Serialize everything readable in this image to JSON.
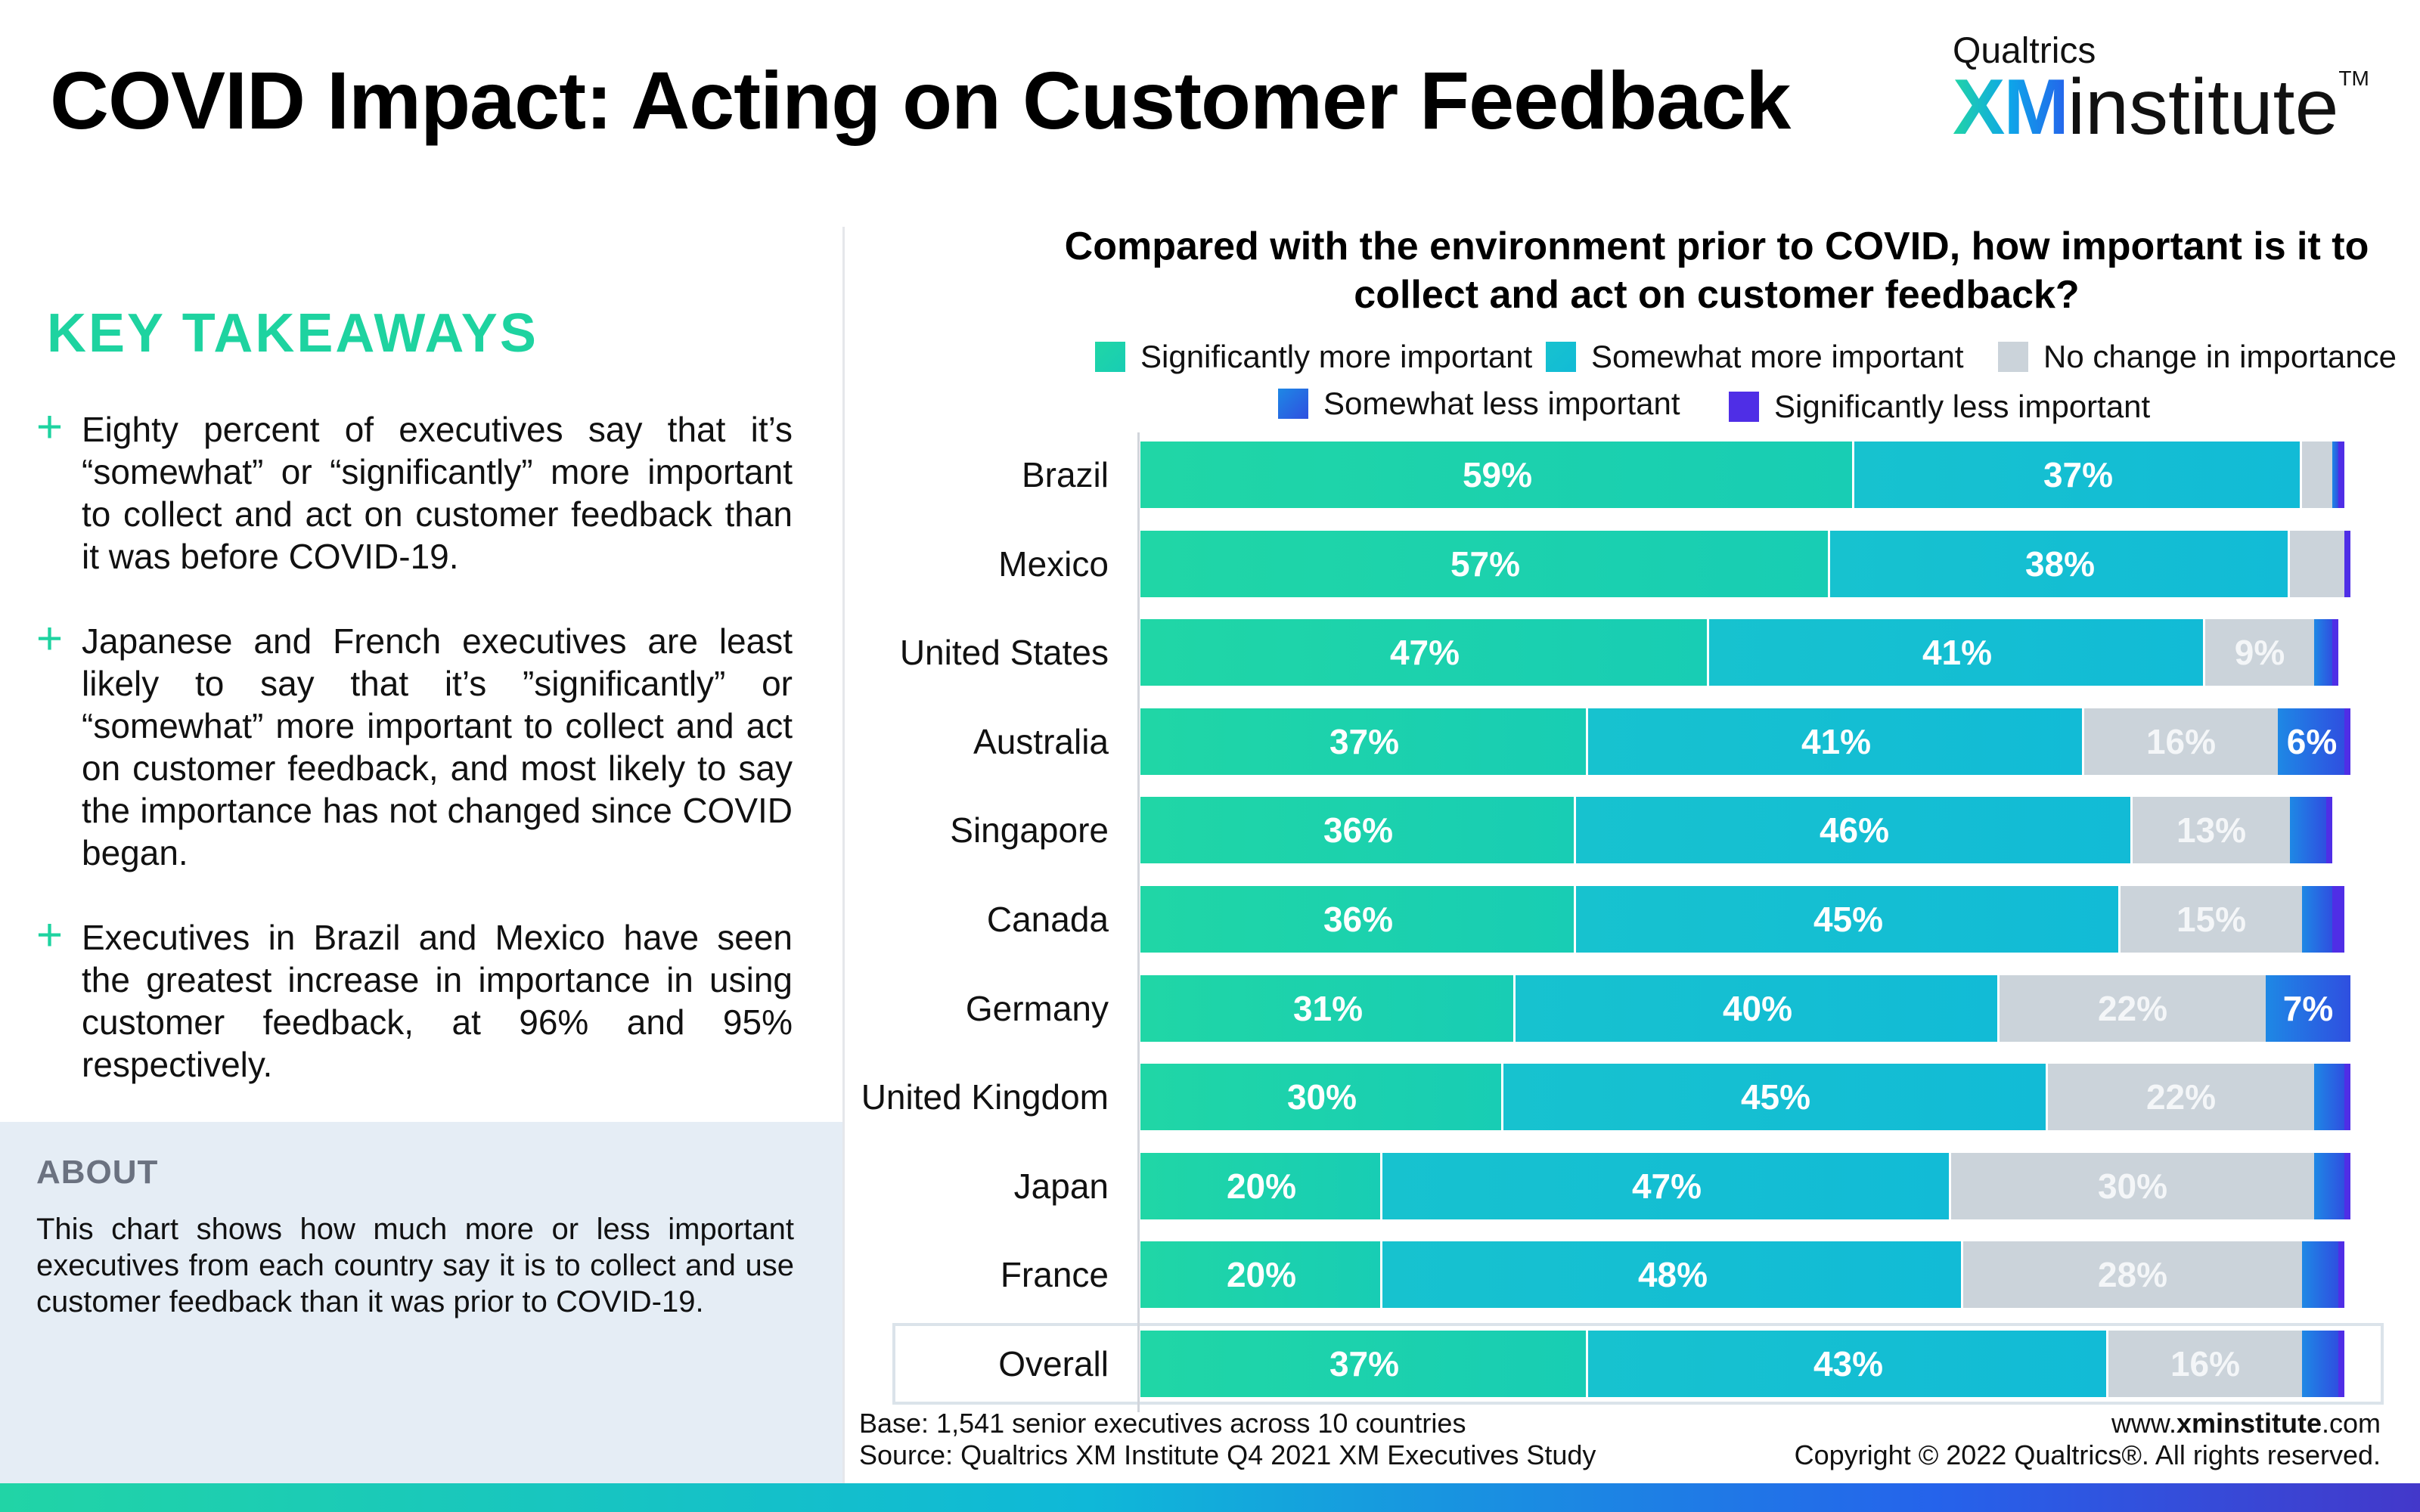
{
  "header": {
    "title": "COVID Impact: Acting on Customer Feedback",
    "brand_small": "Qualtrics",
    "brand_xm": "XM",
    "brand_institute": "institute",
    "brand_tm": "TM"
  },
  "takeaways": {
    "title": "KEY TAKEAWAYS",
    "plus_symbol": "+",
    "items": [
      "Eighty percent of executives say that it’s “somewhat” or “significantly” more important to collect and act on customer feedback than it was before COVID-19.",
      "Japanese and French executives are least likely to say that it’s ”significantly” or “somewhat” more important to collect and act on customer feedback, and most likely to say the importance has not changed since COVID began.",
      "Executives in Brazil and Mexico have seen the greatest increase in importance in using customer feedback, at 96% and 95% respectively."
    ]
  },
  "about": {
    "title": "ABOUT",
    "text": "This chart shows how much more or less important executives from each country say it is to collect and use customer feedback than it was prior to COVID-19."
  },
  "footer": {
    "base": "Base: 1,541 senior executives across 10 countries",
    "source": "Source: Qualtrics XM Institute Q4 2021 XM Executives Study",
    "url_prefix": "www.",
    "url_bold": "xminstitute",
    "url_suffix": ".com",
    "copyright": "Copyright © 2022 Qualtrics®. All rights reserved."
  },
  "chart_data": {
    "type": "bar",
    "orientation": "horizontal",
    "stacked": true,
    "title_lines": [
      "Compared with the environment prior to COVID, how important is it to",
      "collect and act on customer feedback?"
    ],
    "categories": [
      "Brazil",
      "Mexico",
      "United States",
      "Australia",
      "Singapore",
      "Canada",
      "Germany",
      "United Kingdom",
      "Japan",
      "France",
      "Overall"
    ],
    "series": [
      {
        "name": "Significantly more important",
        "color": "#20d6a6",
        "color_end": "#18cdb4",
        "values": [
          59,
          57,
          47,
          37,
          36,
          36,
          31,
          30,
          20,
          20,
          37
        ],
        "labels": [
          "59%",
          "57%",
          "47%",
          "37%",
          "36%",
          "36%",
          "31%",
          "30%",
          "20%",
          "20%",
          "37%"
        ]
      },
      {
        "name": "Somewhat more important",
        "color": "#17c2cf",
        "color_end": "#12bbd6",
        "values": [
          37,
          38,
          41,
          41,
          46,
          45,
          40,
          45,
          47,
          48,
          43
        ],
        "labels": [
          "37%",
          "38%",
          "41%",
          "41%",
          "46%",
          "45%",
          "40%",
          "45%",
          "47%",
          "48%",
          "43%"
        ]
      },
      {
        "name": "No change in importance",
        "color": "#cbd3da",
        "color_end": "#cbd3da",
        "values": [
          2.5,
          4.5,
          9,
          16,
          13,
          15,
          22,
          22,
          30,
          28,
          16
        ],
        "labels": [
          "",
          "",
          "9%",
          "16%",
          "13%",
          "15%",
          "22%",
          "22%",
          "30%",
          "28%",
          "16%"
        ]
      },
      {
        "name": "Somewhat less important",
        "color": "#1e88e5",
        "color_end": "#2f4fe0",
        "values": [
          0.5,
          0,
          1.5,
          5.5,
          3,
          2.5,
          7,
          2.5,
          2.5,
          3,
          3
        ],
        "labels": [
          "",
          "",
          "",
          "6%",
          "",
          "",
          "7%",
          "",
          "",
          "",
          ""
        ]
      },
      {
        "name": "Significantly less important",
        "color": "#4f2ee6",
        "color_end": "#4f2ee6",
        "values": [
          0.5,
          0.5,
          0.5,
          0.5,
          0.5,
          1,
          0,
          0.5,
          0.5,
          0.5,
          0.5
        ],
        "labels": [
          "",
          "",
          "",
          "",
          "",
          "",
          "",
          "",
          "",
          "",
          ""
        ]
      }
    ],
    "xlim": [
      0,
      100
    ],
    "legend_position": "top",
    "grid": false,
    "highlight_category": "Overall"
  }
}
